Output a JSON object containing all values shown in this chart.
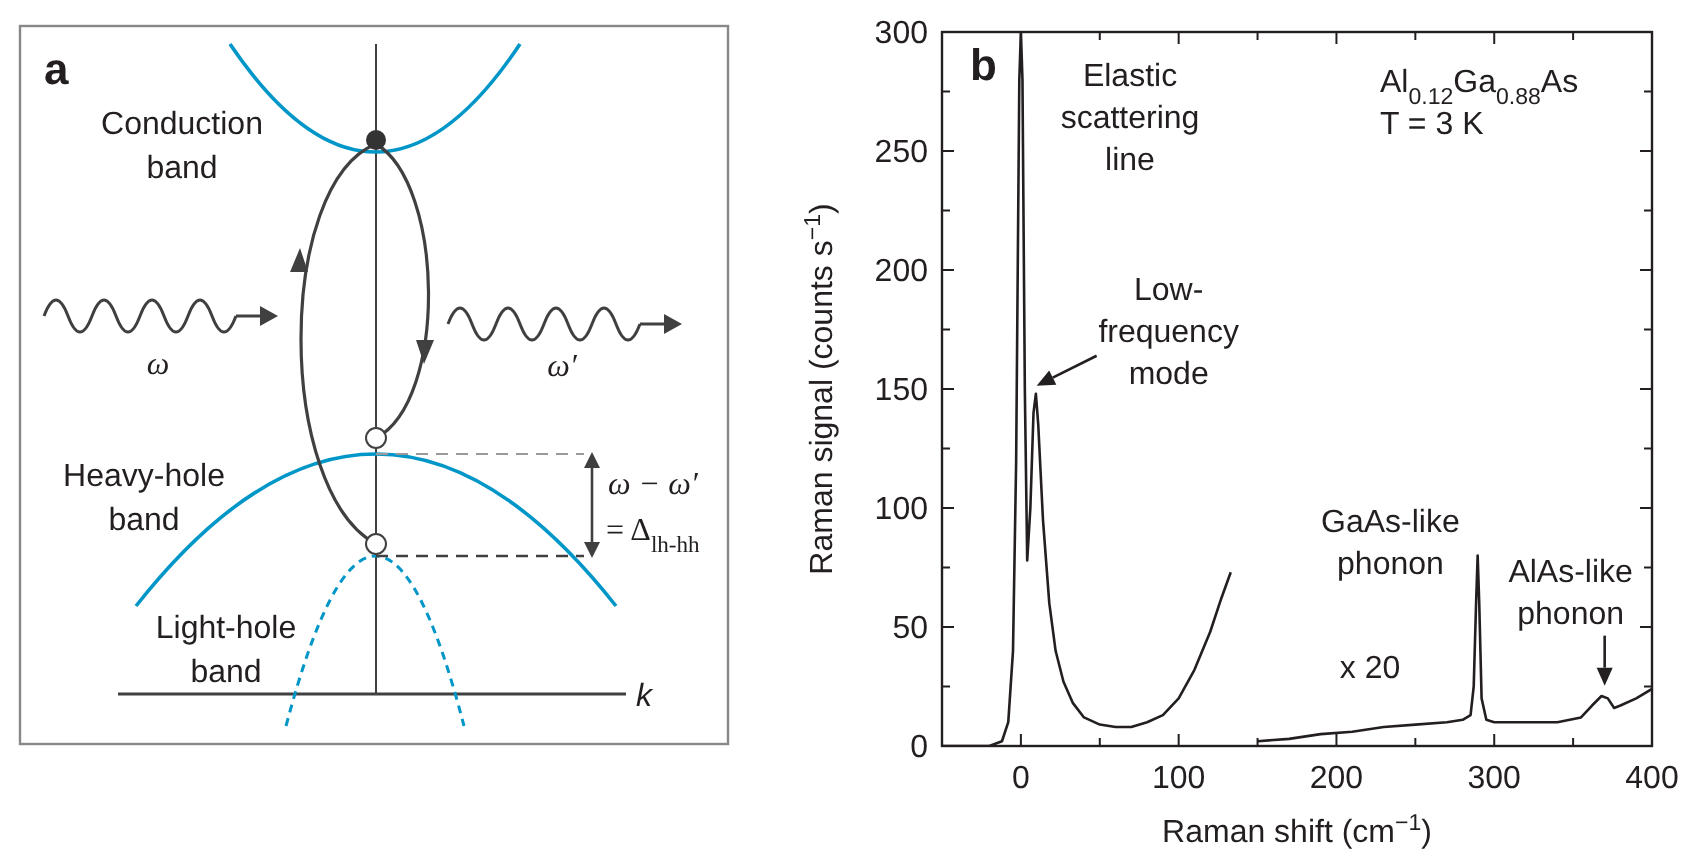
{
  "chart_data": [
    {
      "type": "other",
      "title": "a",
      "annotations": [
        "Conduction\nband",
        "Heavy-hole\nband",
        "Light-hole\nband",
        "ω",
        "ω′",
        "ω − ω′",
        "= Δ$_{lh-hh}$",
        "k"
      ]
    },
    {
      "type": "line",
      "title": "b",
      "xlabel": "Raman shift (cm$^{−1}$)",
      "ylabel": "Raman signal (counts s$^{−1}$)",
      "xlim": [
        -50,
        400
      ],
      "ylim": [
        0,
        300
      ],
      "xticks": [
        0,
        {
          "value": 50,
          "label": null
        },
        100,
        {
          "value": 150,
          "label": null
        },
        200,
        {
          "value": 250,
          "label": null
        },
        300,
        {
          "value": 350,
          "label": null
        },
        400
      ],
      "yticks": [
        0,
        {
          "value": 25,
          "label": null
        },
        50,
        {
          "value": 75,
          "label": null
        },
        100,
        {
          "value": 125,
          "label": null
        },
        150,
        {
          "value": 175,
          "label": null
        },
        200,
        {
          "value": 225,
          "label": null
        },
        250,
        {
          "value": 275,
          "label": null
        },
        300
      ],
      "series": [
        {
          "color": "#231f20",
          "x": [
            -50,
            -20,
            -12,
            -8,
            -5,
            -3,
            -1,
            0,
            1,
            2.5,
            4,
            6,
            8,
            9.5,
            11,
            14,
            18,
            22,
            27,
            33,
            40,
            50,
            60,
            70,
            80,
            90,
            100,
            110,
            120,
            127,
            133
          ],
          "values": [
            0,
            0,
            2,
            10,
            40,
            120,
            280,
            300,
            280,
            150,
            78,
            100,
            140,
            148,
            135,
            95,
            60,
            40,
            27,
            18,
            12,
            9,
            8,
            8,
            10,
            13,
            20,
            32,
            48,
            62,
            73
          ]
        },
        {
          "color": "#231f20",
          "x": [
            150,
            170,
            190,
            210,
            230,
            250,
            270,
            280,
            285,
            287,
            288.5,
            289.5,
            290.5,
            292,
            295,
            300,
            320,
            340,
            355,
            362,
            368,
            372,
            376,
            380,
            390,
            400
          ],
          "values": [
            2,
            3,
            5,
            6,
            8,
            9,
            10,
            11,
            13,
            25,
            60,
            80,
            60,
            20,
            11,
            10,
            10,
            10,
            12,
            17,
            21,
            20,
            16,
            17,
            20,
            24
          ]
        }
      ],
      "annotations": [
        "Elastic\nscattering\nline",
        {
          "text": "Low-\nfrequency\nmode",
          "x": 10,
          "y": 148
        },
        "Al$_{0.12}$Ga$_{0.88}$As",
        "T = 3 K",
        {
          "text": "GaAs-like\nphonon",
          "x": 290,
          "y": 80
        },
        {
          "text": "AlAs-like\nphonon",
          "x": 370,
          "y": 22
        },
        "x 20"
      ]
    }
  ]
}
